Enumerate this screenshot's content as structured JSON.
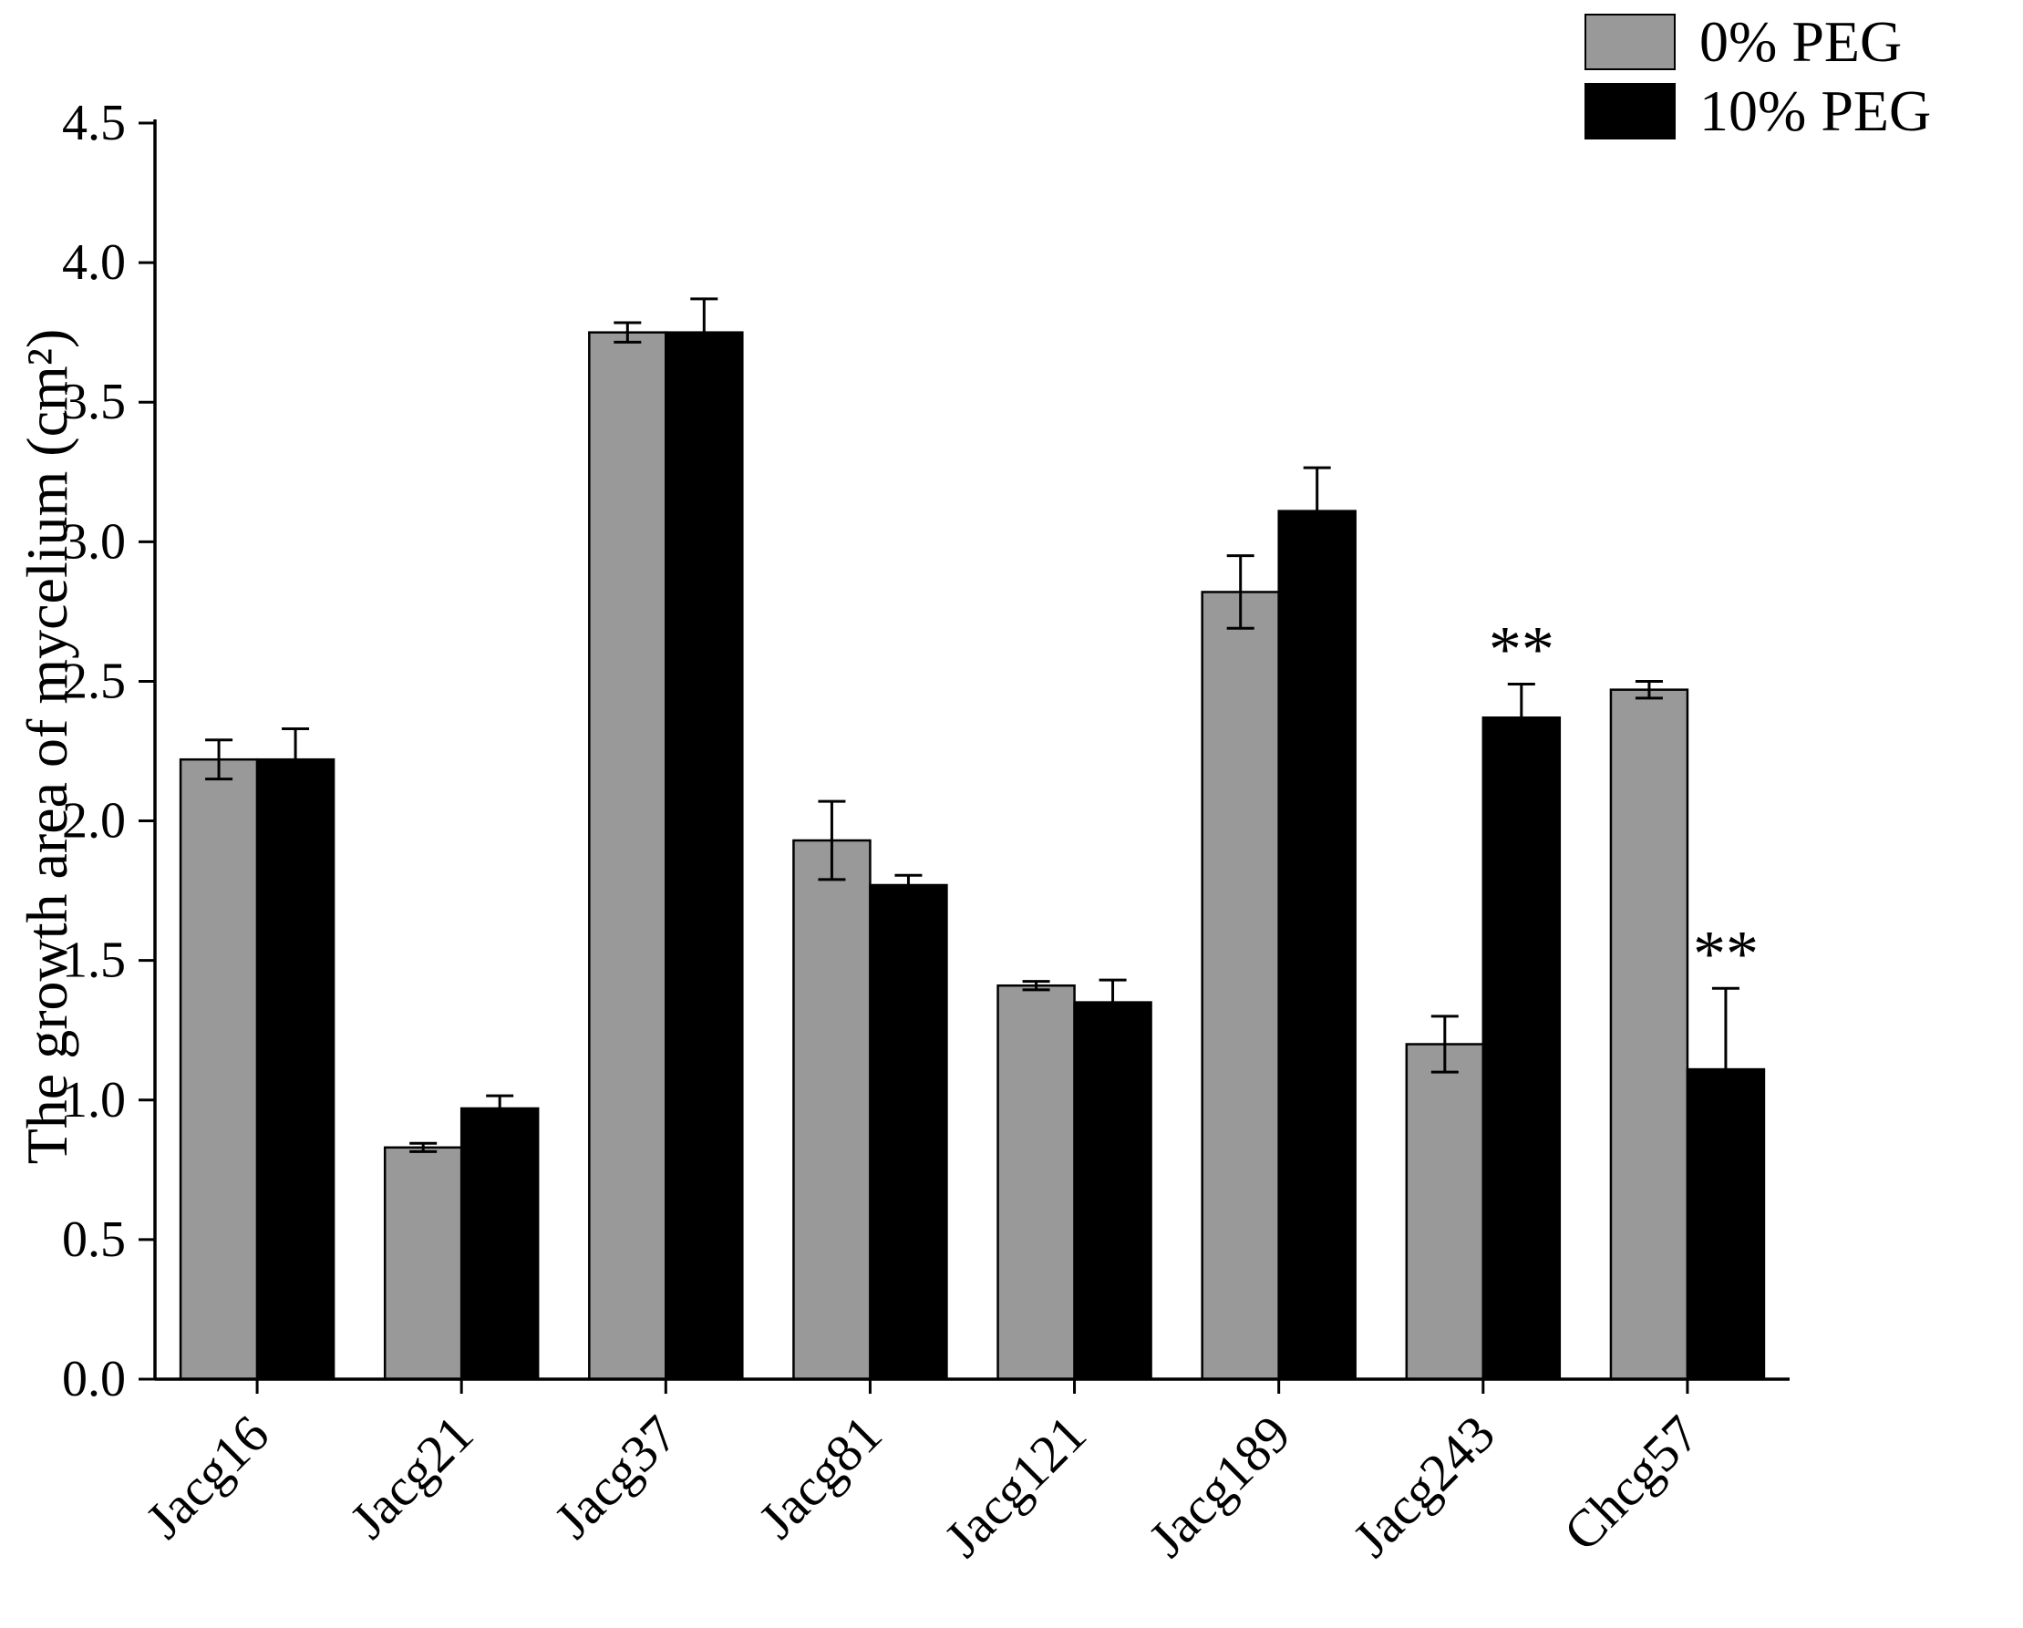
{
  "chart_data": {
    "type": "bar",
    "title": "",
    "categories": [
      "Jacg16",
      "Jacg21",
      "Jacg37",
      "Jacg81",
      "Jacg121",
      "Jacg189",
      "Jacg243",
      "Chcg57"
    ],
    "series": [
      {
        "name": "0% PEG",
        "color": "#999999",
        "values": [
          2.22,
          0.83,
          3.75,
          1.93,
          1.41,
          2.82,
          1.2,
          2.47
        ],
        "errors": [
          0.07,
          0.015,
          0.035,
          0.14,
          0.015,
          0.13,
          0.1,
          0.03
        ]
      },
      {
        "name": "10% PEG",
        "color": "#000000",
        "values": [
          2.22,
          0.97,
          3.75,
          1.77,
          1.35,
          3.11,
          2.37,
          1.11
        ],
        "errors": [
          0.11,
          0.045,
          0.12,
          0.035,
          0.08,
          0.155,
          0.12,
          0.29
        ]
      }
    ],
    "xlabel": "",
    "ylabel": "The growth area of mycelium (cm²)",
    "ylim": [
      0,
      4.5
    ],
    "ytick_step": 0.5,
    "ytick_labels": [
      "0.0",
      "0.5",
      "1.0",
      "1.5",
      "2.0",
      "2.5",
      "3.0",
      "3.5",
      "4.0",
      "4.5"
    ],
    "grid": false,
    "legend_position": "top-right",
    "bar_edge_color": "#000000",
    "error_bar_color": "#000000",
    "annotations": [
      {
        "text": "**",
        "category": "Jacg243",
        "series": "10% PEG"
      },
      {
        "text": "**",
        "category": "Chcg57",
        "series": "10% PEG"
      }
    ]
  }
}
